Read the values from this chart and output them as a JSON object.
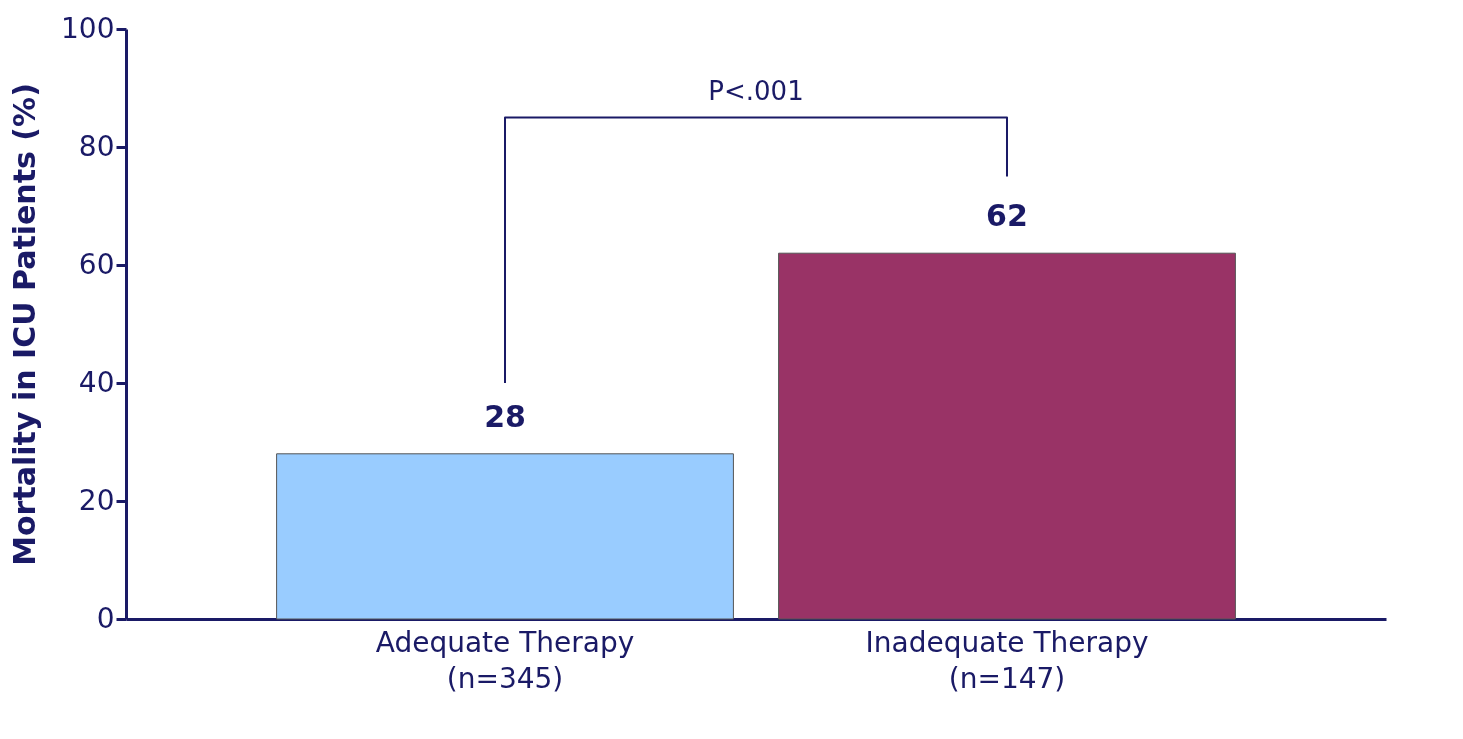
{
  "chart_data": {
    "type": "bar",
    "ylabel": "Mortality in ICU Patients (%)",
    "categories": [
      "Adequate Therapy\n(n=345)",
      "Inadequate Therapy\n(n=147)"
    ],
    "values": [
      28,
      62
    ],
    "colors": [
      "#99ccff",
      "#993366"
    ],
    "ylim": [
      0,
      100
    ],
    "yticks": [
      0,
      20,
      40,
      60,
      80,
      100
    ],
    "grid": false,
    "data_labels": true,
    "annotations": [
      "P<.001"
    ]
  }
}
